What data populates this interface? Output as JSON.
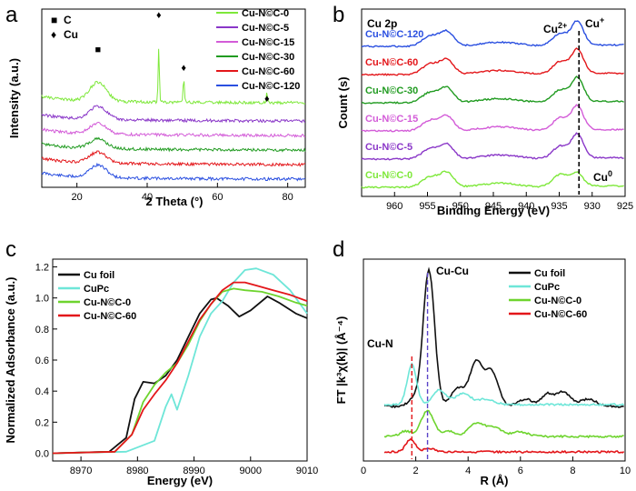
{
  "chart_data": [
    {
      "panel": "a",
      "type": "line",
      "xlabel": "2 Theta (°)",
      "ylabel": "Intensity (a.u.)",
      "xlim": [
        10,
        85
      ],
      "xticks": [
        20,
        40,
        60,
        80
      ],
      "markers_legend": [
        {
          "symbol": "■",
          "label": "C"
        },
        {
          "symbol": "♦",
          "label": "Cu"
        }
      ],
      "series": [
        {
          "name": "Cu-N©C-0",
          "color": "#7ee83a",
          "offset": 5,
          "peaks": [
            [
              26,
              2.6
            ],
            [
              43.3,
              7.6
            ],
            [
              50.4,
              3.2
            ],
            [
              74.1,
              1.4
            ]
          ]
        },
        {
          "name": "Cu-N©C-5",
          "color": "#8a37c8",
          "offset": 4,
          "peaks": [
            [
              26,
              1.8
            ]
          ]
        },
        {
          "name": "Cu-N©C-15",
          "color": "#d35cd8",
          "offset": 3,
          "peaks": [
            [
              26,
              1.4
            ]
          ]
        },
        {
          "name": "Cu-N©C-30",
          "color": "#219b21",
          "offset": 2,
          "peaks": [
            [
              26,
              1.3
            ]
          ]
        },
        {
          "name": "Cu-N©C-60",
          "color": "#e3161a",
          "offset": 1,
          "peaks": [
            [
              26,
              1.5
            ]
          ]
        },
        {
          "name": "Cu-N©C-120",
          "color": "#2a4fe0",
          "offset": 0,
          "peaks": [
            [
              26,
              1.7
            ]
          ]
        }
      ],
      "annotations": [
        {
          "symbol": "■",
          "x": 26
        },
        {
          "symbol": "♦",
          "x": 43.3
        },
        {
          "symbol": "♦",
          "x": 50.4
        },
        {
          "symbol": "♦",
          "x": 74.1
        }
      ]
    },
    {
      "panel": "b",
      "type": "line",
      "title": "Cu 2p",
      "xlabel": "Binding Energy (eV)",
      "ylabel": "Count (s)",
      "xlim": [
        965,
        925
      ],
      "xticks": [
        960,
        955,
        950,
        945,
        940,
        935,
        930,
        925
      ],
      "dashed_line_x": 932,
      "peak_labels": {
        "cu2": "Cu",
        "cu2_sup": "2+",
        "cu1": "Cu",
        "cu1_sup": "+",
        "cu0": "Cu",
        "cu0_sup": "0"
      },
      "series": [
        {
          "name": "Cu-N©C-120",
          "color": "#2a4fe0",
          "offset": 5
        },
        {
          "name": "Cu-N©C-60",
          "color": "#e3161a",
          "offset": 4
        },
        {
          "name": "Cu-N©C-30",
          "color": "#219b21",
          "offset": 3
        },
        {
          "name": "Cu-N©C-15",
          "color": "#d35cd8",
          "offset": 2
        },
        {
          "name": "Cu-N©C-5",
          "color": "#8a37c8",
          "offset": 1
        },
        {
          "name": "Cu-N©C-0",
          "color": "#7ee83a",
          "offset": 0
        }
      ]
    },
    {
      "panel": "c",
      "type": "line",
      "xlabel": "Energy (eV)",
      "ylabel": "Normalized Adsorbance (a.u.)",
      "xlim": [
        8965,
        9010
      ],
      "ylim": [
        -0.05,
        1.25
      ],
      "xticks": [
        8970,
        8980,
        8990,
        9000,
        9010
      ],
      "yticks": [
        "0.0",
        "0.2",
        "0.4",
        "0.6",
        "0.8",
        "1.0",
        "1.2"
      ],
      "series": [
        {
          "name": "Cu foil",
          "color": "#111111",
          "points": [
            [
              8965,
              0
            ],
            [
              8975,
              0.01
            ],
            [
              8978,
              0.1
            ],
            [
              8979.5,
              0.35
            ],
            [
              8981,
              0.46
            ],
            [
              8983,
              0.45
            ],
            [
              8985,
              0.5
            ],
            [
              8987,
              0.6
            ],
            [
              8989,
              0.75
            ],
            [
              8991,
              0.9
            ],
            [
              8993,
              0.99
            ],
            [
              8994,
              1.0
            ],
            [
              8996,
              0.95
            ],
            [
              8998,
              0.88
            ],
            [
              9000,
              0.92
            ],
            [
              9003,
              1.01
            ],
            [
              9005,
              0.97
            ],
            [
              9008,
              0.9
            ],
            [
              9010,
              0.87
            ]
          ]
        },
        {
          "name": "CuPc",
          "color": "#6ee6d8",
          "points": [
            [
              8965,
              0
            ],
            [
              8978,
              0.01
            ],
            [
              8983,
              0.08
            ],
            [
              8985,
              0.3
            ],
            [
              8986,
              0.38
            ],
            [
              8987,
              0.28
            ],
            [
              8989,
              0.5
            ],
            [
              8991,
              0.75
            ],
            [
              8993,
              0.9
            ],
            [
              8995,
              0.98
            ],
            [
              8997,
              1.1
            ],
            [
              8999,
              1.18
            ],
            [
              9001,
              1.19
            ],
            [
              9004,
              1.15
            ],
            [
              9007,
              1.05
            ],
            [
              9010,
              0.9
            ]
          ]
        },
        {
          "name": "Cu-N©C-0",
          "color": "#6ed42e",
          "points": [
            [
              8965,
              0
            ],
            [
              8976,
              0.01
            ],
            [
              8979,
              0.12
            ],
            [
              8981,
              0.33
            ],
            [
              8983,
              0.44
            ],
            [
              8985,
              0.52
            ],
            [
              8987,
              0.58
            ],
            [
              8989,
              0.7
            ],
            [
              8991,
              0.85
            ],
            [
              8993,
              0.96
            ],
            [
              8995,
              1.04
            ],
            [
              8997,
              1.06
            ],
            [
              8999,
              1.05
            ],
            [
              9002,
              1.04
            ],
            [
              9005,
              1.01
            ],
            [
              9008,
              0.97
            ],
            [
              9010,
              0.95
            ]
          ]
        },
        {
          "name": "Cu-N©C-60",
          "color": "#e3161a",
          "points": [
            [
              8965,
              0
            ],
            [
              8976,
              0.01
            ],
            [
              8979,
              0.12
            ],
            [
              8981,
              0.28
            ],
            [
              8983,
              0.38
            ],
            [
              8985,
              0.47
            ],
            [
              8987,
              0.58
            ],
            [
              8989,
              0.72
            ],
            [
              8991,
              0.86
            ],
            [
              8993,
              0.96
            ],
            [
              8995,
              1.05
            ],
            [
              8997,
              1.1
            ],
            [
              8999,
              1.1
            ],
            [
              9001,
              1.08
            ],
            [
              9004,
              1.05
            ],
            [
              9007,
              1.02
            ],
            [
              9010,
              0.98
            ]
          ]
        }
      ]
    },
    {
      "panel": "d",
      "type": "line",
      "xlabel": "R (Å)",
      "ylabel": "FT |k³χ(k)| (Å⁻⁴)",
      "xlim": [
        0,
        10
      ],
      "xticks": [
        0,
        2,
        4,
        6,
        8,
        10
      ],
      "dashed_lines_x": [
        1.85,
        2.45
      ],
      "peak_labels": [
        "Cu-Cu",
        "Cu-N"
      ],
      "series": [
        {
          "name": "Cu foil",
          "color": "#111111",
          "offset": 3
        },
        {
          "name": "CuPc",
          "color": "#6ee6d8",
          "offset": 2
        },
        {
          "name": "Cu-N©C-0",
          "color": "#6ed42e",
          "offset": 1
        },
        {
          "name": "Cu-N©C-60",
          "color": "#e3161a",
          "offset": 0
        }
      ]
    }
  ],
  "panel_labels": [
    "a",
    "b",
    "c",
    "d"
  ]
}
